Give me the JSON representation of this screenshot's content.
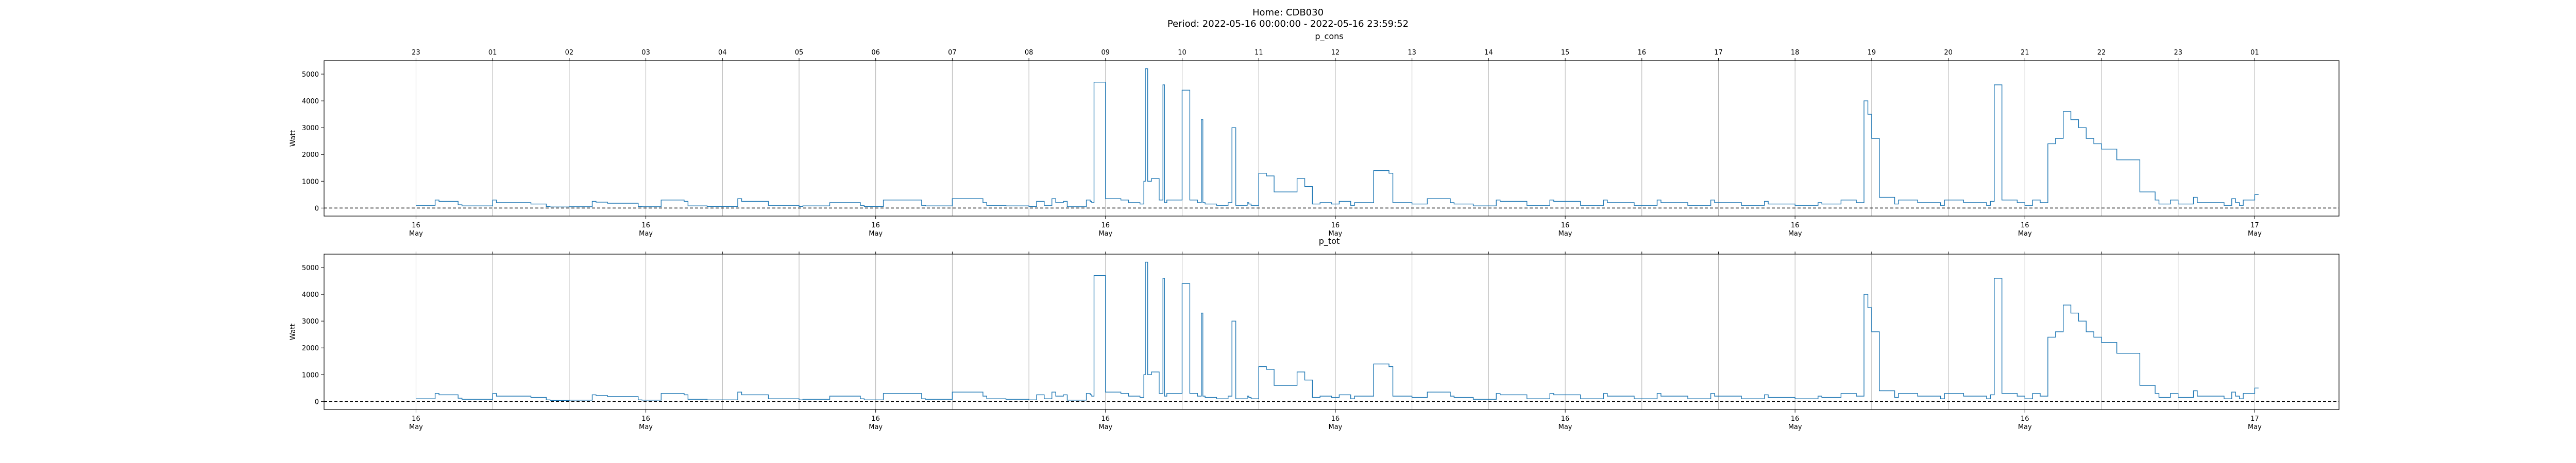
{
  "figure": {
    "title_line1": "Home: CDB030",
    "title_line2": "Period: 2022-05-16 00:00:00 - 2022-05-16 23:59:52"
  },
  "colors": {
    "series": "#1f77b4",
    "grid": "#b0b0b0",
    "axes": "#000000",
    "zero_line": "#000000"
  },
  "top_hour_ticks": [
    "23",
    "01",
    "02",
    "03",
    "04",
    "05",
    "06",
    "07",
    "08",
    "09",
    "10",
    "11",
    "12",
    "13",
    "14",
    "15",
    "16",
    "17",
    "18",
    "19",
    "20",
    "21",
    "22",
    "23",
    "01"
  ],
  "bottom_date_ticks": [
    {
      "day": "16",
      "month": "May"
    },
    {
      "day": "16",
      "month": "May"
    },
    {
      "day": "16",
      "month": "May"
    },
    {
      "day": "16",
      "month": "May"
    },
    {
      "day": "16",
      "month": "May"
    },
    {
      "day": "16",
      "month": "May"
    },
    {
      "day": "16",
      "month": "May"
    },
    {
      "day": "16",
      "month": "May"
    },
    {
      "day": "17",
      "month": "May"
    }
  ],
  "chart_data": [
    {
      "type": "line",
      "title": "p_cons",
      "ylabel": "Watt",
      "xlabel": "",
      "x_unit": "hour of 2022-05-16",
      "xlim": [
        -1.2,
        25.1
      ],
      "ylim": [
        -300,
        5500
      ],
      "yticks": [
        0,
        1000,
        2000,
        3000,
        4000,
        5000
      ],
      "grid": "vertical lines at each hour",
      "zero_line": "dashed",
      "series": [
        {
          "x": [
            0.0,
            0.25,
            0.3,
            0.55,
            0.6,
            1.0,
            1.05,
            1.5,
            1.7,
            1.75,
            2.0,
            2.3,
            2.35,
            2.5,
            2.9,
            2.95,
            3.2,
            3.5,
            3.55,
            3.8,
            4.2,
            4.25,
            4.6,
            5.0,
            5.05,
            5.4,
            5.8,
            5.85,
            6.1,
            6.6,
            6.65,
            7.0,
            7.4,
            7.45,
            7.7,
            8.0,
            8.1,
            8.2,
            8.3,
            8.35,
            8.45,
            8.5,
            8.75,
            8.8,
            8.82,
            8.85,
            9.0,
            9.2,
            9.3,
            9.45,
            9.5,
            9.52,
            9.55,
            9.6,
            9.7,
            9.75,
            9.77,
            9.8,
            10.0,
            10.1,
            10.2,
            10.25,
            10.27,
            10.3,
            10.45,
            10.6,
            10.65,
            10.7,
            10.85,
            10.87,
            10.9,
            11.0,
            11.1,
            11.2,
            11.5,
            11.6,
            11.7,
            11.8,
            11.95,
            12.05,
            12.2,
            12.25,
            12.5,
            12.7,
            12.75,
            13.0,
            13.2,
            13.5,
            13.55,
            13.8,
            14.1,
            14.15,
            14.5,
            14.8,
            14.85,
            15.2,
            15.5,
            15.55,
            15.9,
            16.2,
            16.25,
            16.6,
            16.9,
            16.95,
            17.3,
            17.6,
            17.65,
            18.0,
            18.3,
            18.35,
            18.6,
            18.8,
            18.9,
            18.95,
            19.0,
            19.1,
            19.3,
            19.35,
            19.6,
            19.9,
            19.95,
            20.2,
            20.5,
            20.55,
            20.6,
            20.7,
            20.9,
            21.0,
            21.1,
            21.2,
            21.3,
            21.4,
            21.5,
            21.6,
            21.7,
            21.8,
            21.9,
            22.0,
            22.1,
            22.2,
            22.3,
            22.5,
            22.7,
            22.75,
            22.9,
            23.0,
            23.2,
            23.25,
            23.6,
            23.7,
            23.75,
            23.8,
            23.85,
            24.0
          ],
          "y": [
            100,
            300,
            250,
            120,
            80,
            300,
            200,
            150,
            60,
            40,
            50,
            250,
            220,
            180,
            60,
            50,
            300,
            250,
            80,
            60,
            350,
            250,
            100,
            60,
            80,
            200,
            100,
            60,
            300,
            100,
            80,
            350,
            200,
            100,
            80,
            60,
            250,
            100,
            350,
            200,
            250,
            50,
            300,
            250,
            200,
            4700,
            350,
            300,
            200,
            150,
            1000,
            5200,
            1000,
            1100,
            300,
            4600,
            200,
            300,
            4400,
            300,
            200,
            3300,
            200,
            150,
            100,
            200,
            3000,
            100,
            200,
            150,
            100,
            1300,
            1200,
            600,
            1100,
            800,
            150,
            200,
            150,
            250,
            100,
            200,
            1400,
            1300,
            200,
            150,
            350,
            200,
            150,
            80,
            300,
            250,
            100,
            300,
            250,
            100,
            300,
            200,
            100,
            300,
            200,
            100,
            300,
            200,
            100,
            250,
            150,
            100,
            200,
            150,
            300,
            200,
            4000,
            3500,
            2600,
            400,
            150,
            300,
            200,
            100,
            300,
            200,
            100,
            250,
            4600,
            300,
            200,
            100,
            300,
            200,
            2400,
            2600,
            3600,
            3300,
            3000,
            2600,
            2400,
            2200,
            2200,
            1800,
            1800,
            600,
            300,
            150,
            300,
            150,
            400,
            200,
            100,
            350,
            200,
            100,
            300,
            500
          ],
          "note": "values approximated from the plotted step trace"
        }
      ]
    },
    {
      "type": "line",
      "title": "p_tot",
      "ylabel": "Watt",
      "xlabel": "",
      "x_unit": "hour of 2022-05-16",
      "xlim": [
        -1.2,
        25.1
      ],
      "ylim": [
        -300,
        5500
      ],
      "yticks": [
        0,
        1000,
        2000,
        3000,
        4000,
        5000
      ],
      "grid": "vertical lines at each hour",
      "zero_line": "dashed",
      "series": [
        {
          "x": [
            0.0,
            0.25,
            0.3,
            0.55,
            0.6,
            1.0,
            1.05,
            1.5,
            1.7,
            1.75,
            2.0,
            2.3,
            2.35,
            2.5,
            2.9,
            2.95,
            3.2,
            3.5,
            3.55,
            3.8,
            4.2,
            4.25,
            4.6,
            5.0,
            5.05,
            5.4,
            5.8,
            5.85,
            6.1,
            6.6,
            6.65,
            7.0,
            7.4,
            7.45,
            7.7,
            8.0,
            8.1,
            8.2,
            8.3,
            8.35,
            8.45,
            8.5,
            8.75,
            8.8,
            8.82,
            8.85,
            9.0,
            9.2,
            9.3,
            9.45,
            9.5,
            9.52,
            9.55,
            9.6,
            9.7,
            9.75,
            9.77,
            9.8,
            10.0,
            10.1,
            10.2,
            10.25,
            10.27,
            10.3,
            10.45,
            10.6,
            10.65,
            10.7,
            10.85,
            10.87,
            10.9,
            11.0,
            11.1,
            11.2,
            11.5,
            11.6,
            11.7,
            11.8,
            11.95,
            12.05,
            12.2,
            12.25,
            12.5,
            12.7,
            12.75,
            13.0,
            13.2,
            13.5,
            13.55,
            13.8,
            14.1,
            14.15,
            14.5,
            14.8,
            14.85,
            15.2,
            15.5,
            15.55,
            15.9,
            16.2,
            16.25,
            16.6,
            16.9,
            16.95,
            17.3,
            17.6,
            17.65,
            18.0,
            18.3,
            18.35,
            18.6,
            18.8,
            18.9,
            18.95,
            19.0,
            19.1,
            19.3,
            19.35,
            19.6,
            19.9,
            19.95,
            20.2,
            20.5,
            20.55,
            20.6,
            20.7,
            20.9,
            21.0,
            21.1,
            21.2,
            21.3,
            21.4,
            21.5,
            21.6,
            21.7,
            21.8,
            21.9,
            22.0,
            22.1,
            22.2,
            22.3,
            22.5,
            22.7,
            22.75,
            22.9,
            23.0,
            23.2,
            23.25,
            23.6,
            23.7,
            23.75,
            23.8,
            23.85,
            24.0
          ],
          "y": [
            100,
            300,
            250,
            120,
            80,
            300,
            200,
            150,
            60,
            40,
            50,
            250,
            220,
            180,
            60,
            50,
            300,
            250,
            80,
            60,
            350,
            250,
            100,
            60,
            80,
            200,
            100,
            60,
            300,
            100,
            80,
            350,
            200,
            100,
            80,
            60,
            250,
            100,
            350,
            200,
            250,
            50,
            300,
            250,
            200,
            4700,
            350,
            300,
            200,
            150,
            1000,
            5200,
            1000,
            1100,
            300,
            4600,
            200,
            300,
            4400,
            300,
            200,
            3300,
            200,
            150,
            100,
            200,
            3000,
            100,
            200,
            150,
            100,
            1300,
            1200,
            600,
            1100,
            800,
            150,
            200,
            150,
            250,
            100,
            200,
            1400,
            1300,
            200,
            150,
            350,
            200,
            150,
            80,
            300,
            250,
            100,
            300,
            250,
            100,
            300,
            200,
            100,
            300,
            200,
            100,
            300,
            200,
            100,
            250,
            150,
            100,
            200,
            150,
            300,
            200,
            4000,
            3500,
            2600,
            400,
            150,
            300,
            200,
            100,
            300,
            200,
            100,
            250,
            4600,
            300,
            200,
            100,
            300,
            200,
            2400,
            2600,
            3600,
            3300,
            3000,
            2600,
            2400,
            2200,
            2200,
            1800,
            1800,
            600,
            300,
            150,
            300,
            150,
            400,
            200,
            100,
            350,
            200,
            100,
            300,
            500
          ],
          "note": "values approximated from the plotted step trace"
        }
      ]
    }
  ]
}
